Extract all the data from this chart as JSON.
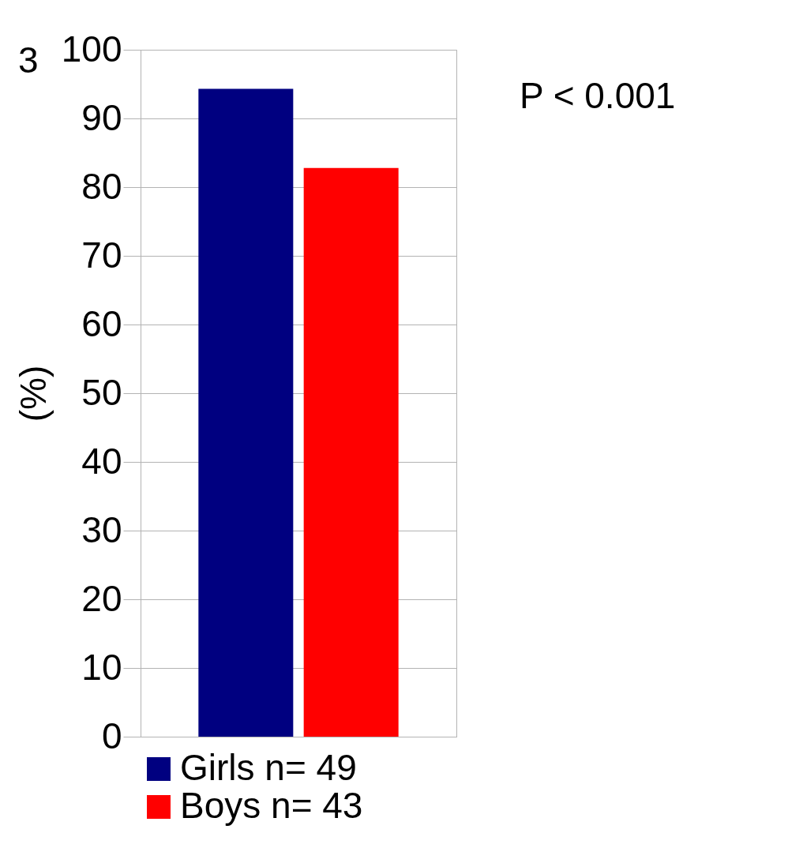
{
  "chart_data": {
    "type": "bar",
    "categories": [
      null
    ],
    "ylabel": "(%)",
    "series": [
      {
        "name": "Girls n= 49",
        "color": "#000080",
        "values": [
          94.3
        ]
      },
      {
        "name": "Boys n= 43",
        "color": "#ff0000",
        "values": [
          82.8
        ]
      }
    ],
    "ylim": [
      0,
      100
    ],
    "yticks": [
      0,
      10,
      20,
      30,
      40,
      50,
      60,
      70,
      80,
      90,
      100
    ],
    "grid": "y",
    "legend": "bottom",
    "tick_labels": "y",
    "annotations": [
      "3",
      "P < 0.001"
    ]
  }
}
